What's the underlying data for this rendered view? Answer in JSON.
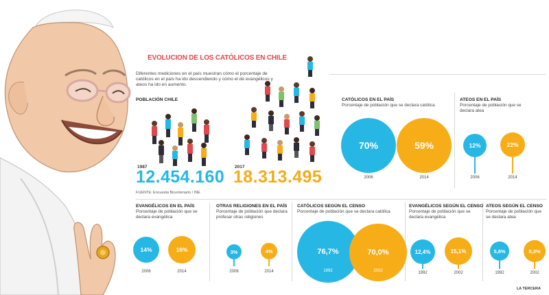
{
  "title": "EVOLUCION DE LOS CATÓLICOS EN CHILE",
  "intro": "Diferentes mediciones en el país muestran cómo el porcentaje de católicos en el país ha ido descendiendo y cómo el de evangélicos y ateos ha ido en aumento.",
  "poblacion": {
    "label": "POBLACIÓN CHILE",
    "y1987": "1987",
    "v1987": "12.454.160",
    "y2017": "2017",
    "v2017": "18.313.495"
  },
  "source": "FUENTE: Encuesta Bicentenario / INE",
  "credit": "LA TERCERA",
  "catolicos": {
    "title": "CATÓLICOS EN EL PAÍS",
    "subtitle": "Porcentaje de población que se declara católica",
    "a_val": "70%",
    "a_year": "2006",
    "b_val": "59%",
    "b_year": "2014"
  },
  "ateos": {
    "title": "ATEOS EN EL PAÍS",
    "subtitle": "Porcentaje de población que se declara atea",
    "a_val": "12%",
    "a_year": "2006",
    "b_val": "22%",
    "b_year": "2014"
  },
  "evangelicos": {
    "title": "EVANGÉLICOS EN EL PAÍS",
    "subtitle": "Porcentaje de población que se declara evangélica",
    "a_val": "14%",
    "a_year": "2006",
    "b_val": "16%",
    "b_year": "2014"
  },
  "otras": {
    "title": "OTRAS RELIGIONES EN EL PAÍS",
    "subtitle": "Porcentaje de población que declara profesar otras religiones",
    "a_val": "3%",
    "a_year": "2006",
    "b_val": "4%",
    "b_year": "2014"
  },
  "cat_censo": {
    "title": "CATÓLICOS SEGÚN EL CENSO",
    "subtitle": "Porcentaje de población que se declara católica",
    "a_val": "76,7%",
    "a_year": "1992",
    "b_val": "70,0%",
    "b_year": "2002"
  },
  "evan_censo": {
    "title": "EVANGÉLICOS SEGÚN EL CENSO",
    "subtitle": "Porcentaje de población que se declara evangélica",
    "a_val": "12,4%",
    "a_year": "1992",
    "b_val": "15,1%",
    "b_year": "2002"
  },
  "ateos_censo": {
    "title": "ATEOS SEGÚN EL CENSO",
    "subtitle": "Porcentaje de población que se declara atea",
    "a_val": "5,8%",
    "a_year": "1992",
    "b_val": "8,3%",
    "b_year": "2002"
  },
  "colors": {
    "cyan": "#27b7e4",
    "orange": "#f6ad18",
    "title_red": "#e5444e"
  }
}
